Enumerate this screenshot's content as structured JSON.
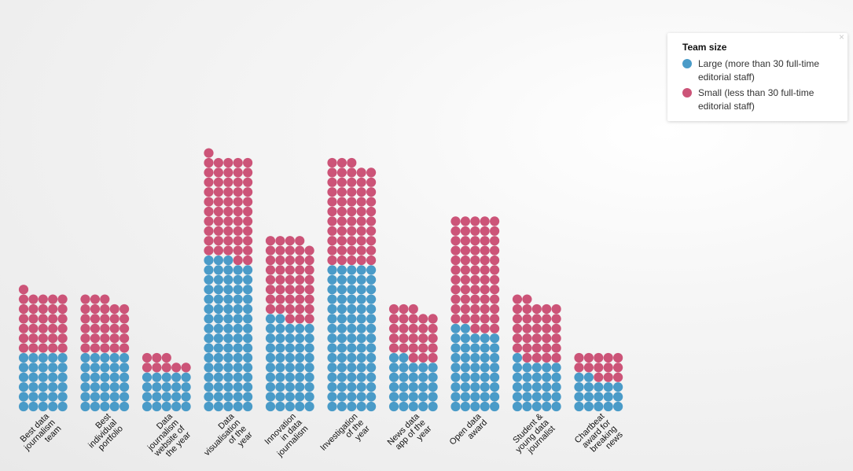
{
  "legend": {
    "title": "Team size",
    "items": [
      {
        "label": "Large (more than 30 full-time editorial staff)",
        "color": "#4a9bc8"
      },
      {
        "label": "Small (less than 30 full-time editorial staff)",
        "color": "#cc5478"
      }
    ]
  },
  "close_glyph": "×",
  "chart_data": {
    "type": "bar",
    "subtype": "waffle-column",
    "categories": [
      "Best data journalism team",
      "Best individual portfolio",
      "Data journalism website of the year",
      "Data visualisation of the year",
      "Innovation in data journalism",
      "Investigation of the year",
      "News data app of the year",
      "Open data award",
      "Student & young data journalist",
      "Chartbeat award for breaking news"
    ],
    "category_label_lines": [
      [
        "Best data",
        "journalism",
        "team"
      ],
      [
        "Best",
        "individual",
        "portfolio"
      ],
      [
        "Data",
        "journalism",
        "website of",
        "the year"
      ],
      [
        "Data",
        "visualisation",
        "of the",
        "year"
      ],
      [
        "Innovation",
        "in data",
        "journalism"
      ],
      [
        "Investigation",
        "of the",
        "year"
      ],
      [
        "News data",
        "app of the",
        "year"
      ],
      [
        "Open data",
        "award"
      ],
      [
        "Student &",
        "young data",
        "journalist"
      ],
      [
        "Chartbeat",
        "award for",
        "breaking",
        "news"
      ]
    ],
    "series": [
      {
        "name": "Large (more than 30 full-time editorial staff)",
        "values": [
          30,
          30,
          20,
          78,
          47,
          75,
          27,
          42,
          26,
          17
        ],
        "color": "#4a9bc8"
      },
      {
        "name": "Small (less than 30 full-time editorial staff)",
        "values": [
          31,
          28,
          8,
          53,
          42,
          53,
          26,
          58,
          31,
          13
        ],
        "color": "#cc5478"
      }
    ],
    "dots_per_row": 5,
    "legend_position": "top-right",
    "grid": false
  }
}
